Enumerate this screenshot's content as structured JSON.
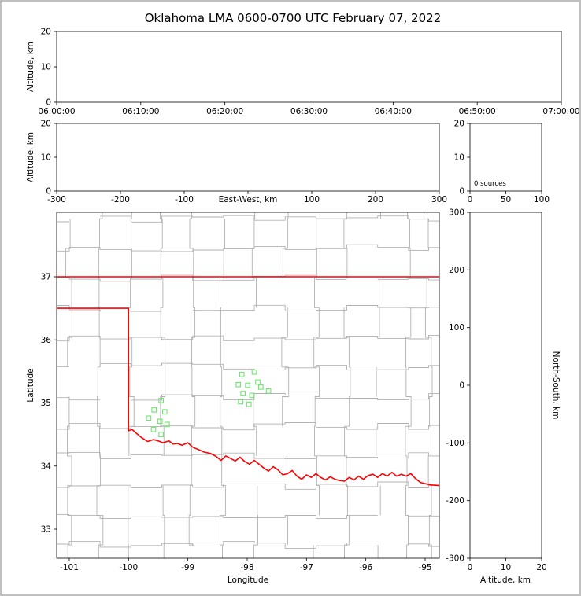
{
  "title": "Oklahoma LMA 0600-0700 UTC February 07, 2022",
  "colors": {
    "state_border": "#ff0000",
    "county": "#b2b2b2",
    "station": "#6ce86c",
    "axis": "#000000",
    "frame": "#c0c0c0"
  },
  "panels": {
    "time_height": {
      "ylabel": "Altitude, km",
      "yticks": [
        "20",
        "10",
        "0"
      ],
      "xticks": [
        "06:00:00",
        "06:10:00",
        "06:20:00",
        "06:30:00",
        "06:40:00",
        "06:50:00",
        "07:00:00"
      ]
    },
    "ew_height": {
      "ylabel": "Altitude, km",
      "xlabel": "East-West, km",
      "yticks": [
        "20",
        "10",
        "0"
      ],
      "xticks": [
        "-300",
        "-200",
        "-100",
        "100",
        "200",
        "300"
      ]
    },
    "histogram": {
      "sources_label": "0 sources",
      "xticks": [
        "0",
        "50",
        "100"
      ],
      "yticks": [
        "20",
        "10",
        "0"
      ]
    },
    "map": {
      "xlabel": "Longitude",
      "ylabel": "Latitude",
      "xticks": [
        "-101",
        "-100",
        "-99",
        "-98",
        "-97",
        "-96",
        "-95"
      ],
      "yticks": [
        "37",
        "36",
        "35",
        "34",
        "33"
      ]
    },
    "north_south": {
      "xlabel": "Altitude, km",
      "right_label": "North-South, km",
      "xticks": [
        "0",
        "10",
        "20"
      ],
      "yticks": [
        "300",
        "200",
        "100",
        "0",
        "-100",
        "-200",
        "-300"
      ]
    }
  },
  "chart_data": [
    {
      "id": "time_height",
      "type": "scatter",
      "x_ticks": [
        "06:00:00",
        "06:10:00",
        "06:20:00",
        "06:30:00",
        "06:40:00",
        "06:50:00",
        "07:00:00"
      ],
      "ylim": [
        0,
        20
      ],
      "ylabel": "Altitude, km",
      "points": []
    },
    {
      "id": "ew_height",
      "type": "scatter",
      "xlim": [
        -300,
        300
      ],
      "ylim": [
        0,
        20
      ],
      "xlabel": "East-West, km",
      "ylabel": "Altitude, km",
      "points": []
    },
    {
      "id": "altitude_histogram",
      "type": "histogram",
      "xlim": [
        0,
        100
      ],
      "ylim": [
        0,
        20
      ],
      "source_count": 0,
      "annotation": "0 sources",
      "values": []
    },
    {
      "id": "map",
      "type": "scatter",
      "xlabel": "Longitude",
      "ylabel": "Latitude",
      "xlim": [
        -101.21,
        -94.76
      ],
      "ylim": [
        32.54,
        38.02
      ],
      "stations": [
        [
          -99.45,
          35.04
        ],
        [
          -99.57,
          34.89
        ],
        [
          -99.39,
          34.86
        ],
        [
          -99.66,
          34.76
        ],
        [
          -99.47,
          34.71
        ],
        [
          -99.35,
          34.66
        ],
        [
          -99.58,
          34.58
        ],
        [
          -99.45,
          34.5
        ],
        [
          -98.09,
          35.45
        ],
        [
          -97.88,
          35.49
        ],
        [
          -98.15,
          35.29
        ],
        [
          -97.99,
          35.28
        ],
        [
          -97.77,
          35.25
        ],
        [
          -98.07,
          35.15
        ],
        [
          -97.92,
          35.12
        ],
        [
          -98.11,
          35.02
        ],
        [
          -97.64,
          35.19
        ],
        [
          -97.97,
          34.98
        ],
        [
          -97.82,
          35.33
        ]
      ],
      "state_border": {
        "north_lat37": [
          [
            -101.21,
            37.0
          ],
          [
            -94.76,
            37.0
          ]
        ],
        "panhandle_and_red_river": [
          [
            -101.21,
            36.5
          ],
          [
            -100.0,
            36.5
          ],
          [
            -100.0,
            34.56
          ],
          [
            -99.94,
            34.58
          ],
          [
            -99.87,
            34.52
          ],
          [
            -99.78,
            34.45
          ],
          [
            -99.68,
            34.39
          ],
          [
            -99.58,
            34.42
          ],
          [
            -99.5,
            34.4
          ],
          [
            -99.42,
            34.37
          ],
          [
            -99.32,
            34.4
          ],
          [
            -99.25,
            34.35
          ],
          [
            -99.18,
            34.36
          ],
          [
            -99.1,
            34.33
          ],
          [
            -99.0,
            34.37
          ],
          [
            -98.92,
            34.3
          ],
          [
            -98.82,
            34.26
          ],
          [
            -98.72,
            34.22
          ],
          [
            -98.62,
            34.2
          ],
          [
            -98.52,
            34.15
          ],
          [
            -98.44,
            34.09
          ],
          [
            -98.36,
            34.16
          ],
          [
            -98.28,
            34.12
          ],
          [
            -98.2,
            34.08
          ],
          [
            -98.12,
            34.14
          ],
          [
            -98.04,
            34.07
          ],
          [
            -97.96,
            34.03
          ],
          [
            -97.88,
            34.09
          ],
          [
            -97.8,
            34.03
          ],
          [
            -97.72,
            33.97
          ],
          [
            -97.64,
            33.92
          ],
          [
            -97.56,
            33.99
          ],
          [
            -97.48,
            33.94
          ],
          [
            -97.4,
            33.86
          ],
          [
            -97.32,
            33.88
          ],
          [
            -97.24,
            33.93
          ],
          [
            -97.16,
            33.84
          ],
          [
            -97.08,
            33.79
          ],
          [
            -97.0,
            33.86
          ],
          [
            -96.92,
            33.82
          ],
          [
            -96.84,
            33.88
          ],
          [
            -96.76,
            33.82
          ],
          [
            -96.68,
            33.78
          ],
          [
            -96.6,
            33.83
          ],
          [
            -96.52,
            33.79
          ],
          [
            -96.44,
            33.77
          ],
          [
            -96.36,
            33.76
          ],
          [
            -96.28,
            33.82
          ],
          [
            -96.2,
            33.78
          ],
          [
            -96.12,
            33.84
          ],
          [
            -96.04,
            33.79
          ],
          [
            -95.96,
            33.85
          ],
          [
            -95.88,
            33.87
          ],
          [
            -95.8,
            33.82
          ],
          [
            -95.72,
            33.88
          ],
          [
            -95.64,
            33.84
          ],
          [
            -95.56,
            33.9
          ],
          [
            -95.48,
            33.84
          ],
          [
            -95.4,
            33.87
          ],
          [
            -95.32,
            33.84
          ],
          [
            -95.24,
            33.88
          ],
          [
            -95.16,
            33.8
          ],
          [
            -95.08,
            33.74
          ],
          [
            -95.0,
            33.72
          ],
          [
            -94.9,
            33.7
          ],
          [
            -94.76,
            33.69
          ]
        ]
      }
    },
    {
      "id": "north_south_height",
      "type": "scatter",
      "xlim": [
        0,
        20
      ],
      "ylim": [
        -300,
        300
      ],
      "xlabel": "Altitude, km",
      "right_label": "North-South, km",
      "points": []
    }
  ]
}
